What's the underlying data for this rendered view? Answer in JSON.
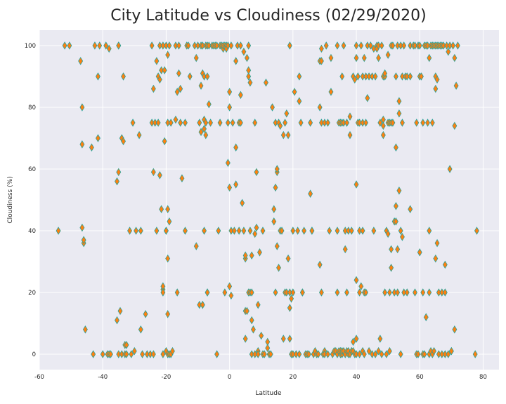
{
  "chart_data": {
    "type": "scatter",
    "title": "City Latitude vs Cloudiness (02/29/2020)",
    "xlabel": "Latitude",
    "ylabel": "Cloudiness (%)",
    "xlim": [
      -60,
      85
    ],
    "ylim": [
      -5,
      105
    ],
    "xticks": [
      -60,
      -40,
      -20,
      0,
      20,
      40,
      60,
      80
    ],
    "yticks": [
      0,
      20,
      40,
      60,
      80,
      100
    ],
    "grid": true,
    "style": "seaborn-darkgrid",
    "marker": "diamond",
    "marker_fill": "#ff7f0e",
    "marker_edge": "#2aa198",
    "background": "#eaeaf2",
    "points": [
      [
        -54,
        40
      ],
      [
        -52,
        100
      ],
      [
        -50.5,
        100
      ],
      [
        -47,
        95
      ],
      [
        -46.5,
        80
      ],
      [
        -46.5,
        68
      ],
      [
        -46.5,
        41
      ],
      [
        -46,
        36
      ],
      [
        -46,
        37
      ],
      [
        -45.5,
        8
      ],
      [
        -43.5,
        67
      ],
      [
        -43,
        0
      ],
      [
        -42.5,
        100
      ],
      [
        -41.5,
        70
      ],
      [
        -41.5,
        90
      ],
      [
        -41,
        100
      ],
      [
        -40,
        0
      ],
      [
        -39,
        100
      ],
      [
        -38.5,
        0
      ],
      [
        -38,
        0
      ],
      [
        -38,
        99
      ],
      [
        -37.5,
        0
      ],
      [
        -35.5,
        11
      ],
      [
        -35.5,
        56
      ],
      [
        -35,
        59
      ],
      [
        -35,
        100
      ],
      [
        -35,
        100
      ],
      [
        -34.5,
        14
      ],
      [
        -35,
        0
      ],
      [
        -34,
        0
      ],
      [
        -34,
        70
      ],
      [
        -33.5,
        90
      ],
      [
        -33.5,
        69
      ],
      [
        -33,
        3
      ],
      [
        -33,
        0
      ],
      [
        -32.5,
        0
      ],
      [
        -32.5,
        3
      ],
      [
        -31.5,
        40
      ],
      [
        -31,
        0
      ],
      [
        -30.5,
        75
      ],
      [
        -30,
        1
      ],
      [
        -29.5,
        40
      ],
      [
        -28.5,
        71
      ],
      [
        -28,
        8
      ],
      [
        -28,
        40
      ],
      [
        -27.5,
        0
      ],
      [
        -26.5,
        13
      ],
      [
        -26,
        0
      ],
      [
        -25,
        0
      ],
      [
        -24.5,
        100
      ],
      [
        -24.5,
        75
      ],
      [
        -24,
        86
      ],
      [
        -24,
        59
      ],
      [
        -24,
        0
      ],
      [
        -23.5,
        75
      ],
      [
        -23,
        95
      ],
      [
        -23,
        40
      ],
      [
        -22.5,
        90
      ],
      [
        -22.5,
        75
      ],
      [
        -22,
        89
      ],
      [
        -22,
        100
      ],
      [
        -22,
        58
      ],
      [
        -21.5,
        92
      ],
      [
        -21.5,
        47
      ],
      [
        -21,
        100
      ],
      [
        -21,
        21
      ],
      [
        -21,
        22
      ],
      [
        -21,
        20
      ],
      [
        -21,
        0
      ],
      [
        -20.5,
        92
      ],
      [
        -20.5,
        69
      ],
      [
        -20,
        100
      ],
      [
        -20,
        1
      ],
      [
        -20,
        40
      ],
      [
        -20,
        40
      ],
      [
        -19.5,
        97
      ],
      [
        -19.5,
        75
      ],
      [
        -19.5,
        47
      ],
      [
        -19.5,
        31
      ],
      [
        -19.5,
        13
      ],
      [
        -19.5,
        0
      ],
      [
        -19,
        100
      ],
      [
        -19,
        43
      ],
      [
        -19,
        0
      ],
      [
        -18.5,
        75
      ],
      [
        -18.5,
        0
      ],
      [
        -18,
        1
      ],
      [
        -17,
        76
      ],
      [
        -17,
        100
      ],
      [
        -16.5,
        85
      ],
      [
        -16.5,
        20
      ],
      [
        -16,
        91
      ],
      [
        -16,
        100
      ],
      [
        -15.5,
        86
      ],
      [
        -15.5,
        75
      ],
      [
        -15,
        57
      ],
      [
        -14,
        75
      ],
      [
        -14,
        40
      ],
      [
        -13.5,
        100
      ],
      [
        -13,
        100
      ],
      [
        -12.5,
        90
      ],
      [
        -11,
        100
      ],
      [
        -10.5,
        96
      ],
      [
        -10.5,
        35
      ],
      [
        -10,
        100
      ],
      [
        -9.5,
        75
      ],
      [
        -9.5,
        16
      ],
      [
        -9,
        100
      ],
      [
        -9,
        87
      ],
      [
        -9,
        72
      ],
      [
        -8.5,
        100
      ],
      [
        -8.5,
        91
      ],
      [
        -8.5,
        16
      ],
      [
        -8.5,
        16
      ],
      [
        -8,
        76
      ],
      [
        -8,
        73
      ],
      [
        -8,
        40
      ],
      [
        -8,
        90
      ],
      [
        -7.5,
        75
      ],
      [
        -7.5,
        71
      ],
      [
        -7.5,
        100
      ],
      [
        -7,
        100
      ],
      [
        -7,
        90
      ],
      [
        -7,
        20
      ],
      [
        -7,
        20
      ],
      [
        -6.5,
        81
      ],
      [
        -6.5,
        100
      ],
      [
        -6,
        75
      ],
      [
        -5.5,
        100
      ],
      [
        -5,
        100
      ],
      [
        -4.5,
        100
      ],
      [
        -4,
        100
      ],
      [
        -4,
        0
      ],
      [
        -3.5,
        40
      ],
      [
        -3,
        100
      ],
      [
        -3,
        75
      ],
      [
        -2.5,
        100
      ],
      [
        -2,
        99
      ],
      [
        -2,
        100
      ],
      [
        -1.5,
        20
      ],
      [
        -1.5,
        100
      ],
      [
        -1,
        100
      ],
      [
        -1,
        99
      ],
      [
        -0.5,
        100
      ],
      [
        -0.5,
        62
      ],
      [
        -0.5,
        75
      ],
      [
        0,
        85
      ],
      [
        0,
        80
      ],
      [
        0,
        54
      ],
      [
        0,
        22
      ],
      [
        0.5,
        40
      ],
      [
        0.5,
        100
      ],
      [
        0.5,
        19
      ],
      [
        1,
        75
      ],
      [
        1.5,
        40
      ],
      [
        2,
        55
      ],
      [
        2,
        67
      ],
      [
        2,
        95
      ],
      [
        2.5,
        100
      ],
      [
        3,
        40
      ],
      [
        3,
        75
      ],
      [
        3.5,
        84
      ],
      [
        3.5,
        100
      ],
      [
        3.5,
        75
      ],
      [
        4,
        49
      ],
      [
        4.5,
        98
      ],
      [
        4.5,
        40
      ],
      [
        5,
        31
      ],
      [
        5,
        32
      ],
      [
        5,
        14
      ],
      [
        5,
        5
      ],
      [
        5.5,
        96
      ],
      [
        5.5,
        14
      ],
      [
        6,
        100
      ],
      [
        6,
        20
      ],
      [
        6,
        90
      ],
      [
        6,
        92
      ],
      [
        6.5,
        88
      ],
      [
        6.5,
        20
      ],
      [
        6.5,
        40
      ],
      [
        7,
        32
      ],
      [
        7,
        20
      ],
      [
        7,
        0
      ],
      [
        7,
        11
      ],
      [
        7.5,
        8
      ],
      [
        8,
        75
      ],
      [
        8,
        39
      ],
      [
        8,
        0
      ],
      [
        8.5,
        59
      ],
      [
        8.5,
        41
      ],
      [
        9,
        1
      ],
      [
        9,
        16
      ],
      [
        9,
        0
      ],
      [
        9.5,
        33
      ],
      [
        10,
        6
      ],
      [
        10.5,
        0
      ],
      [
        10.5,
        40
      ],
      [
        11,
        0
      ],
      [
        11.5,
        88
      ],
      [
        12,
        4
      ],
      [
        12,
        2
      ],
      [
        12.5,
        0
      ],
      [
        13,
        0
      ],
      [
        13.5,
        80
      ],
      [
        14,
        47
      ],
      [
        14,
        43
      ],
      [
        14.5,
        20
      ],
      [
        14.5,
        75
      ],
      [
        14.5,
        54
      ],
      [
        15,
        59
      ],
      [
        15,
        60
      ],
      [
        15,
        35
      ],
      [
        15.5,
        28
      ],
      [
        15.5,
        75
      ],
      [
        16,
        40
      ],
      [
        16,
        74
      ],
      [
        16.5,
        40
      ],
      [
        17,
        71
      ],
      [
        17,
        5
      ],
      [
        17.5,
        20
      ],
      [
        17.5,
        75
      ],
      [
        18,
        78
      ],
      [
        18,
        20
      ],
      [
        18.5,
        71
      ],
      [
        18.5,
        31
      ],
      [
        19,
        100
      ],
      [
        19,
        15
      ],
      [
        19,
        20
      ],
      [
        19,
        5
      ],
      [
        19.5,
        0
      ],
      [
        19.5,
        18
      ],
      [
        20,
        0
      ],
      [
        20,
        40
      ],
      [
        20,
        20
      ],
      [
        20.5,
        85
      ],
      [
        21,
        0
      ],
      [
        21.5,
        40
      ],
      [
        22,
        82
      ],
      [
        22,
        90
      ],
      [
        22,
        0
      ],
      [
        22.5,
        75
      ],
      [
        23,
        20
      ],
      [
        23,
        20
      ],
      [
        23.5,
        40
      ],
      [
        24,
        0
      ],
      [
        24.5,
        0
      ],
      [
        25,
        0
      ],
      [
        25.5,
        75
      ],
      [
        25.5,
        52
      ],
      [
        26,
        40
      ],
      [
        26,
        40
      ],
      [
        26.5,
        0
      ],
      [
        27,
        1
      ],
      [
        27.5,
        0
      ],
      [
        28,
        0
      ],
      [
        28.5,
        80
      ],
      [
        28.5,
        95
      ],
      [
        28.5,
        29
      ],
      [
        29,
        99
      ],
      [
        29,
        95
      ],
      [
        29,
        20
      ],
      [
        29,
        75
      ],
      [
        29.5,
        0
      ],
      [
        30,
        1
      ],
      [
        30,
        0
      ],
      [
        30,
        75
      ],
      [
        30.5,
        100
      ],
      [
        31,
        75
      ],
      [
        31,
        0
      ],
      [
        31.5,
        40
      ],
      [
        32,
        85
      ],
      [
        32,
        96
      ],
      [
        32.5,
        0
      ],
      [
        33,
        1
      ],
      [
        33.5,
        1
      ],
      [
        34,
        100
      ],
      [
        34,
        40
      ],
      [
        34,
        20
      ],
      [
        34,
        0
      ],
      [
        34.5,
        1
      ],
      [
        34.5,
        75
      ],
      [
        35,
        0
      ],
      [
        35,
        75
      ],
      [
        35,
        1
      ],
      [
        35.5,
        90
      ],
      [
        35.5,
        0
      ],
      [
        35.5,
        75
      ],
      [
        35.5,
        1
      ],
      [
        36,
        75
      ],
      [
        36,
        100
      ],
      [
        36,
        1
      ],
      [
        36.5,
        34
      ],
      [
        36.5,
        40
      ],
      [
        36.5,
        0
      ],
      [
        37,
        75
      ],
      [
        37,
        75
      ],
      [
        37,
        1
      ],
      [
        37,
        20
      ],
      [
        37.5,
        0
      ],
      [
        37.5,
        40
      ],
      [
        37.5,
        1
      ],
      [
        38,
        77
      ],
      [
        38,
        71
      ],
      [
        38,
        0
      ],
      [
        38.5,
        1
      ],
      [
        38.5,
        40
      ],
      [
        38.5,
        1
      ],
      [
        39,
        90
      ],
      [
        39,
        4
      ],
      [
        39,
        1
      ],
      [
        39.5,
        89
      ],
      [
        39.5,
        0
      ],
      [
        40,
        100
      ],
      [
        40,
        96
      ],
      [
        40,
        55
      ],
      [
        40,
        24
      ],
      [
        40,
        5
      ],
      [
        40,
        0
      ],
      [
        40.5,
        90
      ],
      [
        40.5,
        75
      ],
      [
        41,
        75
      ],
      [
        41,
        40
      ],
      [
        41,
        20
      ],
      [
        41,
        0
      ],
      [
        41.5,
        100
      ],
      [
        41.5,
        22
      ],
      [
        42,
        90
      ],
      [
        42,
        75
      ],
      [
        42,
        40
      ],
      [
        42,
        1
      ],
      [
        42.5,
        96
      ],
      [
        42.5,
        20
      ],
      [
        42.5,
        0
      ],
      [
        43,
        90
      ],
      [
        43,
        75
      ],
      [
        43,
        20
      ],
      [
        43.5,
        100
      ],
      [
        43.5,
        83
      ],
      [
        44,
        90
      ],
      [
        44,
        1
      ],
      [
        44.5,
        100
      ],
      [
        45,
        90
      ],
      [
        45,
        0
      ],
      [
        45.5,
        99
      ],
      [
        45.5,
        40
      ],
      [
        46,
        90
      ],
      [
        46,
        0
      ],
      [
        46.5,
        100
      ],
      [
        46.5,
        99
      ],
      [
        47,
        96
      ],
      [
        47,
        100
      ],
      [
        47,
        1
      ],
      [
        47.5,
        75
      ],
      [
        47.5,
        5
      ],
      [
        48,
        100
      ],
      [
        48,
        0
      ],
      [
        48.5,
        76
      ],
      [
        48.5,
        71
      ],
      [
        48.5,
        90
      ],
      [
        48.5,
        74
      ],
      [
        49,
        90
      ],
      [
        49,
        91
      ],
      [
        49,
        20
      ],
      [
        49.5,
        40
      ],
      [
        49.5,
        0
      ],
      [
        50,
        97
      ],
      [
        50,
        75
      ],
      [
        50,
        39
      ],
      [
        50.5,
        75
      ],
      [
        50.5,
        20
      ],
      [
        50.5,
        1
      ],
      [
        51,
        100
      ],
      [
        51,
        75
      ],
      [
        51,
        34
      ],
      [
        51,
        28
      ],
      [
        51.5,
        100
      ],
      [
        51.5,
        75
      ],
      [
        52,
        43
      ],
      [
        52,
        20
      ],
      [
        52.5,
        90
      ],
      [
        52.5,
        67
      ],
      [
        52.5,
        48
      ],
      [
        52.5,
        43
      ],
      [
        53,
        100
      ],
      [
        53,
        34
      ],
      [
        53,
        20
      ],
      [
        53.5,
        82
      ],
      [
        53.5,
        78
      ],
      [
        53.5,
        53
      ],
      [
        54,
        100
      ],
      [
        54,
        40
      ],
      [
        54,
        0
      ],
      [
        54.5,
        90
      ],
      [
        54.5,
        75
      ],
      [
        54.5,
        38
      ],
      [
        55,
        100
      ],
      [
        55,
        20
      ],
      [
        55.5,
        90
      ],
      [
        56,
        90
      ],
      [
        56,
        20
      ],
      [
        57,
        100
      ],
      [
        57,
        90
      ],
      [
        57,
        47
      ],
      [
        58,
        100
      ],
      [
        58.5,
        100
      ],
      [
        58.5,
        20
      ],
      [
        59,
        75
      ],
      [
        59,
        0
      ],
      [
        59.5,
        100
      ],
      [
        59.5,
        0
      ],
      [
        60,
        100
      ],
      [
        60,
        90
      ],
      [
        60,
        33
      ],
      [
        60.5,
        90
      ],
      [
        61,
        75
      ],
      [
        61,
        20
      ],
      [
        61,
        0
      ],
      [
        61.5,
        100
      ],
      [
        61.5,
        0
      ],
      [
        62,
        100
      ],
      [
        62,
        12
      ],
      [
        62.5,
        100
      ],
      [
        62.5,
        75
      ],
      [
        63,
        96
      ],
      [
        63,
        40
      ],
      [
        63,
        20
      ],
      [
        63,
        0
      ],
      [
        63.5,
        100
      ],
      [
        63.5,
        1
      ],
      [
        64,
        100
      ],
      [
        64,
        75
      ],
      [
        64,
        0
      ],
      [
        64.5,
        100
      ],
      [
        64.5,
        1
      ],
      [
        65,
        100
      ],
      [
        65,
        90
      ],
      [
        65,
        86
      ],
      [
        65,
        31
      ],
      [
        65.5,
        100
      ],
      [
        65.5,
        89
      ],
      [
        65.5,
        36
      ],
      [
        66,
        100
      ],
      [
        66,
        20
      ],
      [
        66,
        0
      ],
      [
        66.5,
        100
      ],
      [
        67,
        100
      ],
      [
        67,
        20
      ],
      [
        67,
        0
      ],
      [
        67.5,
        100
      ],
      [
        68,
        29
      ],
      [
        68,
        20
      ],
      [
        68,
        0
      ],
      [
        68.5,
        100
      ],
      [
        69,
        98
      ],
      [
        69,
        0
      ],
      [
        69.5,
        100
      ],
      [
        69.5,
        60
      ],
      [
        70,
        1
      ],
      [
        70,
        1
      ],
      [
        70.5,
        100
      ],
      [
        71,
        74
      ],
      [
        71,
        8
      ],
      [
        71,
        96
      ],
      [
        71.5,
        87
      ],
      [
        72,
        100
      ],
      [
        77.5,
        0
      ],
      [
        78,
        40
      ]
    ]
  }
}
